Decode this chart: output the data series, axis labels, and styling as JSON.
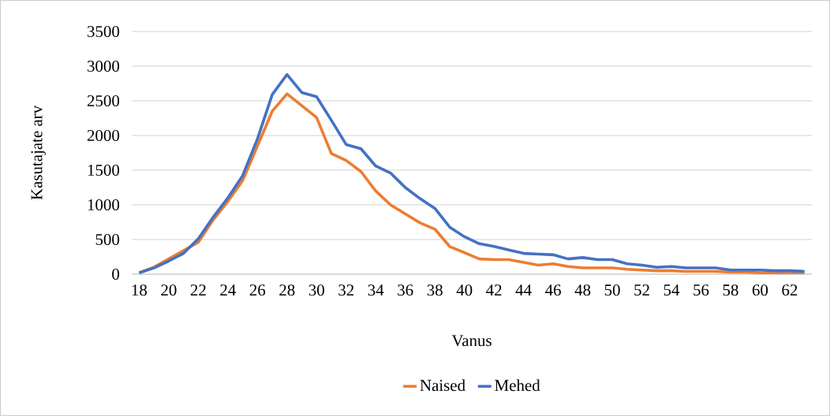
{
  "chart_data": {
    "type": "line",
    "xlabel": "Vanus",
    "ylabel": "Kasutajate arv",
    "categories": [
      "18",
      null,
      "20",
      null,
      "22",
      null,
      "24",
      null,
      "26",
      null,
      "28",
      null,
      "30",
      null,
      "32",
      null,
      "34",
      null,
      "36",
      null,
      "38",
      null,
      "40",
      null,
      "42",
      null,
      "44",
      null,
      "46",
      null,
      "48",
      null,
      "50",
      null,
      "52",
      null,
      "54",
      null,
      "56",
      null,
      "58",
      null,
      "60",
      null,
      "62",
      null
    ],
    "series": [
      {
        "name": "Naised",
        "color": "#ed7d31",
        "values": [
          20,
          100,
          220,
          340,
          460,
          780,
          1050,
          1350,
          1850,
          2350,
          2600,
          2430,
          2260,
          1740,
          1640,
          1480,
          1200,
          1000,
          870,
          740,
          650,
          400,
          310,
          220,
          210,
          210,
          170,
          130,
          150,
          110,
          90,
          90,
          90,
          70,
          60,
          50,
          50,
          40,
          40,
          40,
          30,
          30,
          20,
          20,
          10,
          20
        ]
      },
      {
        "name": "Mehed",
        "color": "#4472c4",
        "values": [
          20,
          90,
          190,
          300,
          510,
          820,
          1100,
          1420,
          1950,
          2590,
          2880,
          2620,
          2560,
          2220,
          1870,
          1810,
          1560,
          1460,
          1250,
          1090,
          950,
          680,
          540,
          440,
          400,
          350,
          300,
          290,
          280,
          220,
          240,
          210,
          210,
          150,
          130,
          100,
          110,
          90,
          90,
          90,
          60,
          60,
          60,
          50,
          50,
          40
        ]
      }
    ],
    "ylim": [
      0,
      3500
    ],
    "yticks": [
      0,
      500,
      1000,
      1500,
      2000,
      2500,
      3000,
      3500
    ],
    "grid": "y",
    "legend": "bottom",
    "marker": "none",
    "line_style": "solid"
  }
}
